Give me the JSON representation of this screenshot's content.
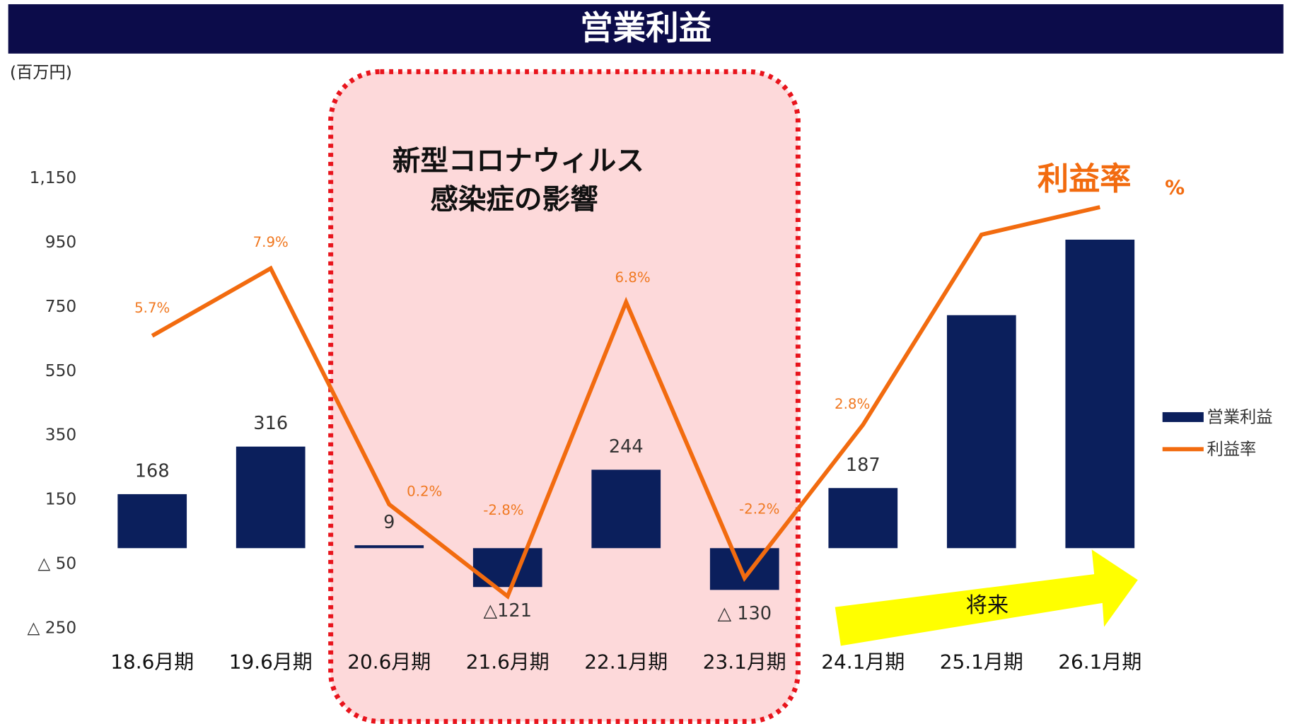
{
  "chart_data": {
    "type": "bar",
    "title": "営業利益",
    "unit": "(百万円)",
    "annotation": [
      "新型コロナウィルス",
      "感染症の影響"
    ],
    "margin_label": "利益率",
    "margin_unit": "%",
    "future_label": "将来",
    "categories": [
      "18.6月期",
      "19.6月期",
      "20.6月期",
      "21.6月期",
      "22.1月期",
      "23.1月期",
      "24.1月期",
      "25.1月期",
      "26.1月期"
    ],
    "series": [
      {
        "name": "営業利益",
        "type": "bar",
        "color": "#0b1f5c",
        "values": [
          168,
          316,
          9,
          -121,
          244,
          -130,
          187,
          725,
          960
        ],
        "value_labels": [
          "168",
          "316",
          "9",
          "△121",
          "244",
          "△ 130",
          "187",
          null,
          null
        ]
      },
      {
        "name": "利益率",
        "type": "line",
        "axis": "y2",
        "color": "#f26b0f",
        "values": [
          5.7,
          7.9,
          0.2,
          -2.8,
          6.8,
          -2.2,
          2.8,
          9.0,
          9.9
        ],
        "value_labels": [
          "5.7%",
          "7.9%",
          "0.2%",
          "-2.8%",
          "6.8%",
          "-2.2%",
          "2.8%",
          null,
          null
        ]
      }
    ],
    "ylim": [
      -250,
      1150
    ],
    "yticks": [
      {
        "value": 1150,
        "label": "1,150"
      },
      950,
      750,
      550,
      350,
      150,
      {
        "value": -50,
        "label": "△ 50"
      },
      {
        "value": -250,
        "label": "△ 250"
      }
    ],
    "y2lim": [
      -3.85,
      10.83
    ],
    "grid": false,
    "legend": "right"
  }
}
